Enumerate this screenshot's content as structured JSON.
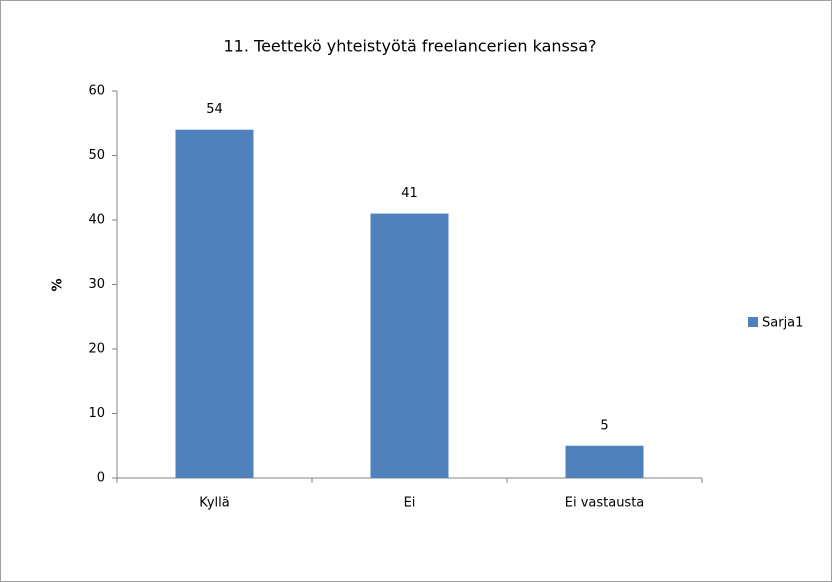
{
  "chart_data": {
    "type": "bar",
    "title": "11. Teettekö yhteistyötä freelancerien kanssa?",
    "y_label": "%",
    "categories": [
      "Kyllä",
      "Ei",
      "Ei vastausta"
    ],
    "values": [
      54,
      41,
      5
    ],
    "series_name": "Sarja1",
    "color": "#4f81bd",
    "ylim": [
      0,
      60
    ],
    "yticks": [
      0,
      10,
      20,
      30,
      40,
      50,
      60
    ],
    "grid": false,
    "legend": "right"
  }
}
